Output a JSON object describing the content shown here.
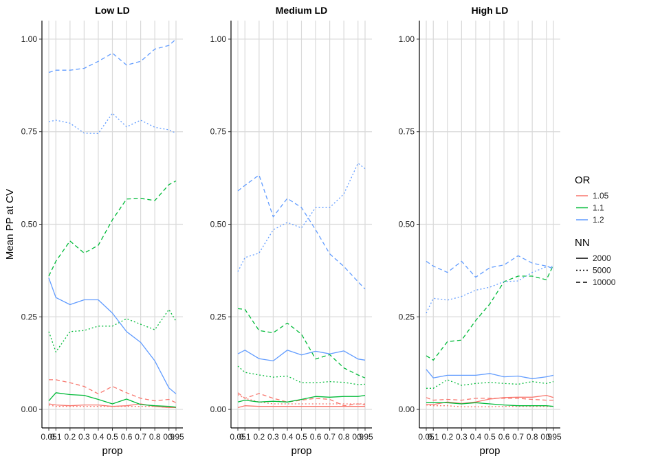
{
  "chart_data": {
    "type": "line",
    "ylabel": "Mean PP at CV",
    "xlabel": "prop",
    "x": [
      0.05,
      0.1,
      0.2,
      0.3,
      0.4,
      0.5,
      0.6,
      0.7,
      0.8,
      0.9,
      0.95
    ],
    "x_tick_labels": [
      "0.05",
      "0.1",
      "0.2",
      "0.3",
      "0.4",
      "0.5",
      "0.6",
      "0.7",
      "0.8",
      "0.9",
      "0.95"
    ],
    "y_ticks": [
      0,
      0.25,
      0.5,
      0.75,
      1
    ],
    "y_tick_labels": [
      "0.00",
      "0.25",
      "0.50",
      "0.75",
      "1.00"
    ],
    "ylim": [
      -0.05,
      1.05
    ],
    "grid": true,
    "legend": {
      "placement": "right",
      "or_title": "OR",
      "or_entries": [
        {
          "label": "1.05",
          "color": "#F8766D"
        },
        {
          "label": "1.1",
          "color": "#00BA38"
        },
        {
          "label": "1.2",
          "color": "#619CFF"
        }
      ],
      "nn_title": "NN",
      "nn_entries": [
        {
          "label": "2000",
          "dash": "solid"
        },
        {
          "label": "5000",
          "dash": "dotted"
        },
        {
          "label": "10000",
          "dash": "dashed"
        }
      ]
    },
    "panels": [
      {
        "title": "Low LD",
        "series": [
          {
            "or": "1.05",
            "nn": "2000",
            "values": [
              0.015,
              0.012,
              0.01,
              0.012,
              0.012,
              0.008,
              0.01,
              0.015,
              0.008,
              0.005,
              0.005
            ]
          },
          {
            "or": "1.05",
            "nn": "5000",
            "values": [
              0.012,
              0.008,
              0.008,
              0.008,
              0.008,
              0.008,
              0.008,
              0.008,
              0.008,
              0.005,
              0.005
            ]
          },
          {
            "or": "1.05",
            "nn": "10000",
            "values": [
              0.08,
              0.08,
              0.072,
              0.062,
              0.042,
              0.062,
              0.045,
              0.03,
              0.023,
              0.027,
              0.018
            ]
          },
          {
            "or": "1.1",
            "nn": "2000",
            "values": [
              0.023,
              0.045,
              0.04,
              0.038,
              0.027,
              0.015,
              0.028,
              0.013,
              0.01,
              0.008,
              0.006
            ]
          },
          {
            "or": "1.1",
            "nn": "5000",
            "values": [
              0.21,
              0.155,
              0.21,
              0.213,
              0.225,
              0.225,
              0.245,
              0.23,
              0.215,
              0.27,
              0.238
            ]
          },
          {
            "or": "1.1",
            "nn": "10000",
            "values": [
              0.36,
              0.4,
              0.455,
              0.422,
              0.443,
              0.512,
              0.568,
              0.57,
              0.564,
              0.607,
              0.617
            ]
          },
          {
            "or": "1.2",
            "nn": "2000",
            "values": [
              0.355,
              0.302,
              0.283,
              0.296,
              0.296,
              0.26,
              0.21,
              0.181,
              0.131,
              0.058,
              0.042
            ]
          },
          {
            "or": "1.2",
            "nn": "5000",
            "values": [
              0.777,
              0.781,
              0.773,
              0.746,
              0.745,
              0.8,
              0.763,
              0.781,
              0.762,
              0.755,
              0.746
            ]
          },
          {
            "or": "1.2",
            "nn": "10000",
            "values": [
              0.91,
              0.916,
              0.916,
              0.921,
              0.94,
              0.962,
              0.93,
              0.94,
              0.973,
              0.983,
              1.0
            ]
          }
        ]
      },
      {
        "title": "Medium LD",
        "series": [
          {
            "or": "1.05",
            "nn": "2000",
            "values": [
              0.005,
              0.01,
              0.008,
              0.008,
              0.008,
              0.008,
              0.008,
              0.008,
              0.008,
              0.008,
              0.008
            ]
          },
          {
            "or": "1.05",
            "nn": "5000",
            "values": [
              0.04,
              0.03,
              0.02,
              0.015,
              0.015,
              0.015,
              0.015,
              0.015,
              0.015,
              0.015,
              0.015
            ]
          },
          {
            "or": "1.05",
            "nn": "10000",
            "values": [
              0.045,
              0.03,
              0.043,
              0.03,
              0.02,
              0.025,
              0.03,
              0.027,
              0.01,
              0.015,
              0.012
            ]
          },
          {
            "or": "1.1",
            "nn": "2000",
            "values": [
              0.02,
              0.025,
              0.02,
              0.022,
              0.02,
              0.027,
              0.035,
              0.033,
              0.035,
              0.035,
              0.038
            ]
          },
          {
            "or": "1.1",
            "nn": "5000",
            "values": [
              0.117,
              0.1,
              0.093,
              0.087,
              0.09,
              0.072,
              0.072,
              0.075,
              0.073,
              0.067,
              0.068
            ]
          },
          {
            "or": "1.1",
            "nn": "10000",
            "values": [
              0.272,
              0.27,
              0.213,
              0.207,
              0.233,
              0.203,
              0.136,
              0.148,
              0.112,
              0.093,
              0.085
            ]
          },
          {
            "or": "1.2",
            "nn": "2000",
            "values": [
              0.15,
              0.16,
              0.137,
              0.131,
              0.16,
              0.147,
              0.157,
              0.15,
              0.158,
              0.136,
              0.133
            ]
          },
          {
            "or": "1.2",
            "nn": "5000",
            "values": [
              0.372,
              0.41,
              0.422,
              0.485,
              0.505,
              0.49,
              0.545,
              0.545,
              0.582,
              0.665,
              0.65
            ]
          },
          {
            "or": "1.2",
            "nn": "10000",
            "values": [
              0.59,
              0.605,
              0.633,
              0.52,
              0.57,
              0.545,
              0.485,
              0.42,
              0.386,
              0.345,
              0.325
            ]
          }
        ]
      },
      {
        "title": "High LD",
        "series": [
          {
            "or": "1.05",
            "nn": "2000",
            "values": [
              0.013,
              0.013,
              0.02,
              0.016,
              0.02,
              0.028,
              0.032,
              0.033,
              0.033,
              0.038,
              0.032
            ]
          },
          {
            "or": "1.05",
            "nn": "5000",
            "values": [
              0.012,
              0.01,
              0.01,
              0.007,
              0.007,
              0.007,
              0.008,
              0.008,
              0.008,
              0.008,
              0.008
            ]
          },
          {
            "or": "1.05",
            "nn": "10000",
            "values": [
              0.032,
              0.025,
              0.027,
              0.025,
              0.03,
              0.03,
              0.03,
              0.03,
              0.027,
              0.025,
              0.025
            ]
          },
          {
            "or": "1.1",
            "nn": "2000",
            "values": [
              0.018,
              0.018,
              0.018,
              0.015,
              0.018,
              0.015,
              0.012,
              0.01,
              0.01,
              0.01,
              0.008
            ]
          },
          {
            "or": "1.1",
            "nn": "5000",
            "values": [
              0.057,
              0.057,
              0.08,
              0.065,
              0.07,
              0.073,
              0.07,
              0.068,
              0.075,
              0.07,
              0.075
            ]
          },
          {
            "or": "1.1",
            "nn": "10000",
            "values": [
              0.145,
              0.133,
              0.183,
              0.187,
              0.24,
              0.285,
              0.345,
              0.36,
              0.36,
              0.35,
              0.39
            ]
          },
          {
            "or": "1.2",
            "nn": "2000",
            "values": [
              0.108,
              0.085,
              0.092,
              0.092,
              0.092,
              0.097,
              0.088,
              0.09,
              0.083,
              0.088,
              0.092
            ]
          },
          {
            "or": "1.2",
            "nn": "5000",
            "values": [
              0.26,
              0.3,
              0.295,
              0.305,
              0.322,
              0.33,
              0.345,
              0.347,
              0.37,
              0.385,
              0.387
            ]
          },
          {
            "or": "1.2",
            "nn": "10000",
            "values": [
              0.4,
              0.387,
              0.37,
              0.4,
              0.357,
              0.383,
              0.39,
              0.415,
              0.395,
              0.387,
              0.38
            ]
          }
        ]
      }
    ]
  }
}
